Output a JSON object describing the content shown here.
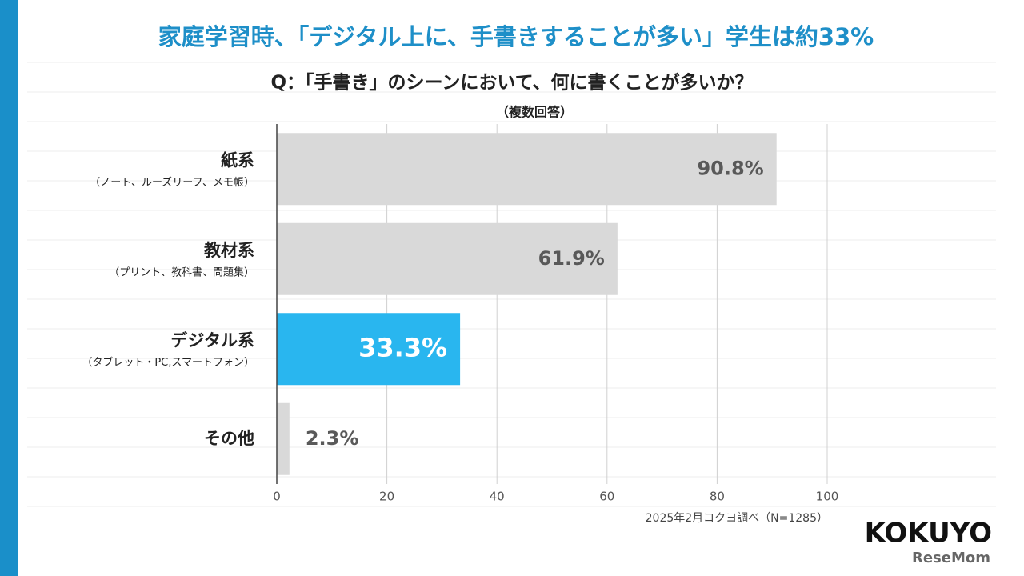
{
  "chart_data": {
    "type": "barh",
    "title": "家庭学習時、「デジタル上に、手書きすることが多い」学生は約33%",
    "subtitle": "Q：「手書き」のシーンにおいて、何に書くことが多いか？",
    "note": "（複数回答）",
    "categories": [
      "紙系",
      "教材系",
      "デジタル系",
      "その他"
    ],
    "category_sublabels": [
      "（ノート、ルーズリーフ、メモ帳）",
      "（プリント、教科書、問題集）",
      "（タブレット・PC,スマートフォン）",
      null
    ],
    "values": [
      90.8,
      61.9,
      33.3,
      2.3
    ],
    "value_labels": [
      "90.8%",
      "61.9%",
      "33.3%",
      "2.3%"
    ],
    "colors": [
      "#d9d9d9",
      "#d9d9d9",
      "#29b6ef",
      "#d9d9d9"
    ],
    "value_label_colors": [
      "#595959",
      "#595959",
      "#ffffff",
      "#595959"
    ],
    "xlim": [
      0,
      100
    ],
    "xticks": [
      0,
      20,
      40,
      60,
      80,
      100
    ],
    "grid": true,
    "source": "2025年2月コクヨ調べ（N=1285）",
    "logos": [
      "KOKUYO",
      "ReseMom"
    ]
  }
}
